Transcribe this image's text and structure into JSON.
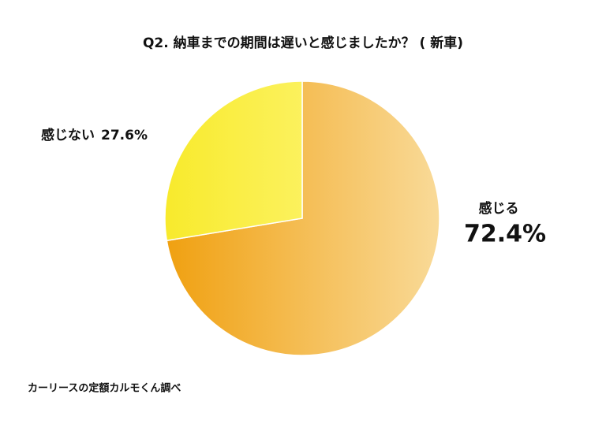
{
  "chart_data": {
    "type": "pie",
    "title": "Q2. 納車までの期間は遅いと感じましたか？ ( 新車)",
    "categories": [
      "感じる",
      "感じない"
    ],
    "values": [
      72.4,
      27.6
    ],
    "value_labels": [
      "72.4%",
      "27.6%"
    ],
    "gradients": [
      [
        "#f0a010",
        "#f9da98"
      ],
      [
        "#f8ea2c",
        "#fff98e"
      ]
    ],
    "source": "カーリースの定額カルモくん調べ"
  }
}
